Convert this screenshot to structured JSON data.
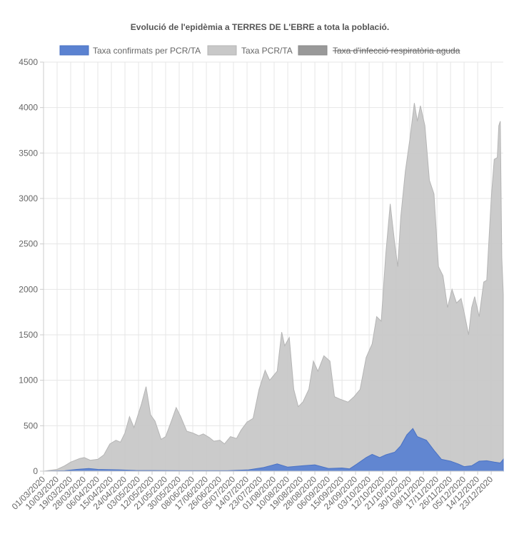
{
  "chart_data": {
    "type": "area",
    "title": "Evolució de l'epidèmia a TERRES DE L'EBRE a tota la població.",
    "legend_position": "top",
    "grid": true,
    "ylim": [
      0,
      4500
    ],
    "yticks": [
      0,
      500,
      1000,
      1500,
      2000,
      2500,
      3000,
      3500,
      4000,
      4500
    ],
    "x_range": [
      "01/03/2020",
      "31/12/2020"
    ],
    "xtick_labels": [
      "01/03/2020",
      "10/03/2020",
      "19/03/2020",
      "28/03/2020",
      "06/04/2020",
      "15/04/2020",
      "24/04/2020",
      "03/05/2020",
      "12/05/2020",
      "21/05/2020",
      "30/05/2020",
      "08/06/2020",
      "17/06/2020",
      "26/06/2020",
      "05/07/2020",
      "14/07/2020",
      "23/07/2020",
      "01/08/2020",
      "10/08/2020",
      "19/08/2020",
      "28/08/2020",
      "06/09/2020",
      "15/09/2020",
      "24/09/2020",
      "03/10/2020",
      "12/10/2020",
      "21/10/2020",
      "30/10/2020",
      "08/11/2020",
      "17/11/2020",
      "26/11/2020",
      "05/12/2020",
      "14/12/2020",
      "23/12/2020"
    ],
    "series": [
      {
        "name": "Taxa confirmats per PCR/TA",
        "fill": "#5b82d1",
        "stroke": "#4a72c4",
        "hidden": false,
        "points": [
          [
            "01/03/2020",
            0
          ],
          [
            "15/03/2020",
            5
          ],
          [
            "23/03/2020",
            20
          ],
          [
            "31/03/2020",
            30
          ],
          [
            "06/04/2020",
            20
          ],
          [
            "20/04/2020",
            15
          ],
          [
            "01/05/2020",
            8
          ],
          [
            "01/06/2020",
            5
          ],
          [
            "01/07/2020",
            5
          ],
          [
            "15/07/2020",
            15
          ],
          [
            "25/07/2020",
            40
          ],
          [
            "03/08/2020",
            80
          ],
          [
            "10/08/2020",
            45
          ],
          [
            "20/08/2020",
            60
          ],
          [
            "28/08/2020",
            70
          ],
          [
            "06/09/2020",
            30
          ],
          [
            "15/09/2020",
            35
          ],
          [
            "20/09/2020",
            25
          ],
          [
            "25/09/2020",
            80
          ],
          [
            "01/10/2020",
            150
          ],
          [
            "05/10/2020",
            185
          ],
          [
            "10/10/2020",
            150
          ],
          [
            "14/10/2020",
            180
          ],
          [
            "20/10/2020",
            210
          ],
          [
            "24/10/2020",
            280
          ],
          [
            "28/10/2020",
            400
          ],
          [
            "01/11/2020",
            470
          ],
          [
            "04/11/2020",
            380
          ],
          [
            "10/11/2020",
            340
          ],
          [
            "15/11/2020",
            230
          ],
          [
            "20/11/2020",
            130
          ],
          [
            "26/11/2020",
            110
          ],
          [
            "01/12/2020",
            80
          ],
          [
            "05/12/2020",
            50
          ],
          [
            "10/12/2020",
            60
          ],
          [
            "15/12/2020",
            110
          ],
          [
            "20/12/2020",
            115
          ],
          [
            "25/12/2020",
            100
          ],
          [
            "29/12/2020",
            90
          ],
          [
            "31/12/2020",
            130
          ]
        ]
      },
      {
        "name": "Taxa PCR/TA",
        "fill": "#c8c8c8",
        "stroke": "#b5b5b5",
        "hidden": false,
        "points": [
          [
            "01/03/2020",
            0
          ],
          [
            "10/03/2020",
            20
          ],
          [
            "15/03/2020",
            60
          ],
          [
            "19/03/2020",
            100
          ],
          [
            "25/03/2020",
            140
          ],
          [
            "28/03/2020",
            150
          ],
          [
            "01/04/2020",
            120
          ],
          [
            "06/04/2020",
            130
          ],
          [
            "10/04/2020",
            180
          ],
          [
            "14/04/2020",
            300
          ],
          [
            "18/04/2020",
            340
          ],
          [
            "21/04/2020",
            320
          ],
          [
            "24/04/2020",
            420
          ],
          [
            "27/04/2020",
            600
          ],
          [
            "30/04/2020",
            480
          ],
          [
            "05/05/2020",
            740
          ],
          [
            "08/05/2020",
            930
          ],
          [
            "11/05/2020",
            620
          ],
          [
            "14/05/2020",
            550
          ],
          [
            "18/05/2020",
            350
          ],
          [
            "21/05/2020",
            380
          ],
          [
            "25/05/2020",
            560
          ],
          [
            "28/05/2020",
            700
          ],
          [
            "31/05/2020",
            600
          ],
          [
            "04/06/2020",
            440
          ],
          [
            "08/06/2020",
            420
          ],
          [
            "12/06/2020",
            390
          ],
          [
            "15/06/2020",
            410
          ],
          [
            "19/06/2020",
            370
          ],
          [
            "22/06/2020",
            330
          ],
          [
            "26/06/2020",
            340
          ],
          [
            "29/06/2020",
            300
          ],
          [
            "03/07/2020",
            380
          ],
          [
            "07/07/2020",
            360
          ],
          [
            "10/07/2020",
            450
          ],
          [
            "14/07/2020",
            540
          ],
          [
            "18/07/2020",
            580
          ],
          [
            "22/07/2020",
            900
          ],
          [
            "26/07/2020",
            1110
          ],
          [
            "29/07/2020",
            1000
          ],
          [
            "03/08/2020",
            1100
          ],
          [
            "06/08/2020",
            1530
          ],
          [
            "08/08/2020",
            1380
          ],
          [
            "11/08/2020",
            1470
          ],
          [
            "14/08/2020",
            900
          ],
          [
            "17/08/2020",
            710
          ],
          [
            "20/08/2020",
            760
          ],
          [
            "24/08/2020",
            900
          ],
          [
            "27/08/2020",
            1210
          ],
          [
            "30/08/2020",
            1100
          ],
          [
            "03/09/2020",
            1270
          ],
          [
            "07/09/2020",
            1210
          ],
          [
            "10/09/2020",
            820
          ],
          [
            "14/09/2020",
            790
          ],
          [
            "19/09/2020",
            760
          ],
          [
            "23/09/2020",
            820
          ],
          [
            "27/09/2020",
            900
          ],
          [
            "01/10/2020",
            1250
          ],
          [
            "05/10/2020",
            1400
          ],
          [
            "08/10/2020",
            1700
          ],
          [
            "11/10/2020",
            1650
          ],
          [
            "14/10/2020",
            2380
          ],
          [
            "17/10/2020",
            2940
          ],
          [
            "20/10/2020",
            2500
          ],
          [
            "22/10/2020",
            2250
          ],
          [
            "24/10/2020",
            2800
          ],
          [
            "27/10/2020",
            3300
          ],
          [
            "30/10/2020",
            3650
          ],
          [
            "02/11/2020",
            4050
          ],
          [
            "04/11/2020",
            3850
          ],
          [
            "06/11/2020",
            4020
          ],
          [
            "09/11/2020",
            3800
          ],
          [
            "12/11/2020",
            3200
          ],
          [
            "15/11/2020",
            3050
          ],
          [
            "18/11/2020",
            2250
          ],
          [
            "21/11/2020",
            2150
          ],
          [
            "24/11/2020",
            1800
          ],
          [
            "27/11/2020",
            2000
          ],
          [
            "30/11/2020",
            1850
          ],
          [
            "03/12/2020",
            1900
          ],
          [
            "05/12/2020",
            1750
          ],
          [
            "08/12/2020",
            1500
          ],
          [
            "10/12/2020",
            1800
          ],
          [
            "12/12/2020",
            1920
          ],
          [
            "15/12/2020",
            1700
          ],
          [
            "18/12/2020",
            2080
          ],
          [
            "20/12/2020",
            2100
          ],
          [
            "23/12/2020",
            3000
          ],
          [
            "25/12/2020",
            3430
          ],
          [
            "27/12/2020",
            3450
          ],
          [
            "28/12/2020",
            3800
          ],
          [
            "29/12/2020",
            3850
          ],
          [
            "30/12/2020",
            2350
          ],
          [
            "31/12/2020",
            1950
          ]
        ]
      },
      {
        "name": "Taxa d'infecció respiratòria aguda",
        "fill": "#999999",
        "stroke": "#888888",
        "hidden": true,
        "points": []
      }
    ]
  }
}
